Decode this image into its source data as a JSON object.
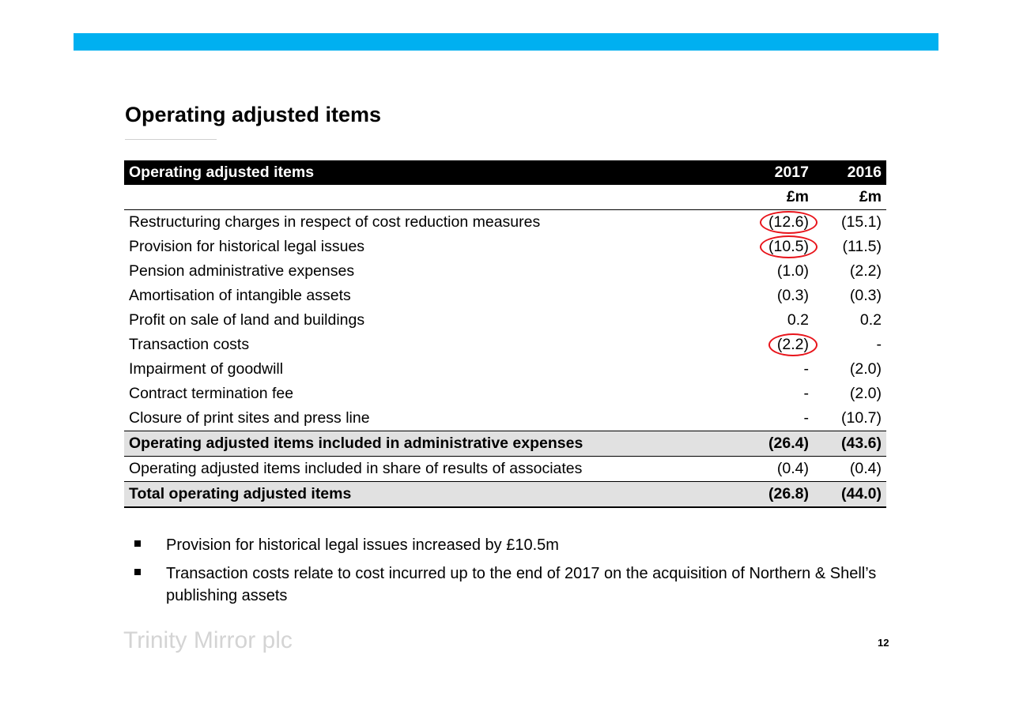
{
  "slide": {
    "title": "Operating adjusted items",
    "accent_color": "#00b0f0",
    "highlight_color": "#e8141b",
    "brand": "Trinity Mirror plc",
    "page_number": "12"
  },
  "table": {
    "header": {
      "label": "Operating adjusted items",
      "col_2017": "2017",
      "col_2016": "2016"
    },
    "units": {
      "col_2017": "£m",
      "col_2016": "£m"
    },
    "rows": [
      {
        "label": "Restructuring charges in respect of cost reduction measures",
        "v2017": "(12.6)",
        "v2016": "(15.1)",
        "circled": true
      },
      {
        "label": "Provision for historical legal issues",
        "v2017": "(10.5)",
        "v2016": "(11.5)",
        "circled": true
      },
      {
        "label": "Pension administrative expenses",
        "v2017": "(1.0)",
        "v2016": "(2.2)"
      },
      {
        "label": "Amortisation of intangible assets",
        "v2017": "(0.3)",
        "v2016": "(0.3)"
      },
      {
        "label": "Profit on sale of land and buildings",
        "v2017": "0.2",
        "v2016": "0.2"
      },
      {
        "label": "Transaction costs",
        "v2017": "(2.2)",
        "v2016": "-",
        "circled": true
      },
      {
        "label": "Impairment of goodwill",
        "v2017": "-",
        "v2016": "(2.0)"
      },
      {
        "label": "Contract termination fee",
        "v2017": "-",
        "v2016": "(2.0)"
      },
      {
        "label": "Closure of print sites and press line",
        "v2017": "-",
        "v2016": "(10.7)"
      }
    ],
    "subtotal": {
      "label": "Operating adjusted items included in administrative expenses",
      "v2017": "(26.4)",
      "v2016": "(43.6)"
    },
    "associates": {
      "label": "Operating adjusted items included in share of results of associates",
      "v2017": "(0.4)",
      "v2016": "(0.4)"
    },
    "total": {
      "label": "Total operating adjusted items",
      "v2017": "(26.8)",
      "v2016": "(44.0)"
    }
  },
  "bullets": [
    "Provision for historical legal issues increased by £10.5m",
    "Transaction costs relate to cost incurred up to the end of 2017 on the acquisition of Northern & Shell’s publishing assets"
  ]
}
